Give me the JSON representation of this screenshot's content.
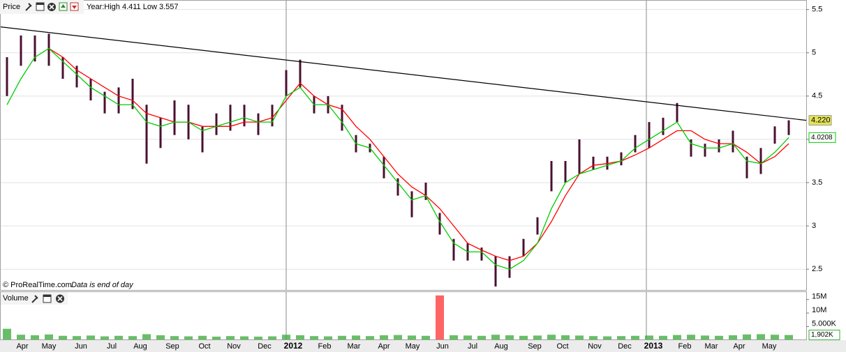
{
  "chart_data": {
    "type": "ohlc",
    "title": "Price",
    "subtitle": "Year:High 4.411 Low 3.557",
    "source": "© ProRealTime.com",
    "note": "Data is end of day",
    "x": [
      0,
      1,
      2,
      3,
      4,
      5,
      6,
      7,
      8,
      9,
      10,
      11,
      12,
      13,
      14,
      15,
      16,
      17,
      18,
      19,
      20,
      21,
      22,
      23,
      24,
      25,
      26,
      27,
      28,
      29,
      30,
      31,
      32,
      33,
      34,
      35,
      36,
      37,
      38,
      39,
      40,
      41,
      42,
      43,
      44,
      45,
      46,
      47,
      48,
      49,
      50,
      51,
      52,
      53,
      54,
      55,
      56
    ],
    "high": [
      4.95,
      5.2,
      5.2,
      5.22,
      4.95,
      4.85,
      4.7,
      4.55,
      4.6,
      4.7,
      4.4,
      4.25,
      4.45,
      4.4,
      4.15,
      4.3,
      4.4,
      4.4,
      4.3,
      4.4,
      4.8,
      4.92,
      4.5,
      4.5,
      4.4,
      4.05,
      3.95,
      3.8,
      3.55,
      3.4,
      3.5,
      3.15,
      2.85,
      2.8,
      2.75,
      2.65,
      2.65,
      2.85,
      3.1,
      3.75,
      3.75,
      4.0,
      3.8,
      3.8,
      3.85,
      4.05,
      4.2,
      4.25,
      4.42,
      4.0,
      3.95,
      4.0,
      4.1,
      3.8,
      3.9,
      4.15,
      4.22
    ],
    "low": [
      4.5,
      4.85,
      4.9,
      4.85,
      4.7,
      4.6,
      4.45,
      4.3,
      4.3,
      4.35,
      3.72,
      3.9,
      4.05,
      4.0,
      3.85,
      4.05,
      4.1,
      4.15,
      4.05,
      4.15,
      4.5,
      4.6,
      4.3,
      4.3,
      4.1,
      3.85,
      3.85,
      3.55,
      3.35,
      3.1,
      3.3,
      2.9,
      2.6,
      2.6,
      2.6,
      2.3,
      2.4,
      2.65,
      2.9,
      3.4,
      3.5,
      3.6,
      3.65,
      3.65,
      3.7,
      3.85,
      3.9,
      4.05,
      4.2,
      3.8,
      3.8,
      3.85,
      3.85,
      3.55,
      3.6,
      3.95,
      4.05
    ],
    "price_color": "#4a1030",
    "last_label": "4.220",
    "last_label_color": "#e2e25a",
    "series": [
      {
        "color": "#ff0000",
        "values": [
          null,
          null,
          null,
          5.05,
          4.95,
          4.8,
          4.7,
          4.6,
          4.5,
          4.45,
          4.3,
          4.25,
          4.2,
          4.2,
          4.15,
          4.15,
          4.15,
          4.2,
          4.2,
          4.25,
          4.45,
          4.65,
          4.5,
          4.4,
          4.35,
          4.15,
          4.0,
          3.8,
          3.6,
          3.45,
          3.35,
          3.2,
          3.0,
          2.8,
          2.72,
          2.65,
          2.6,
          2.65,
          2.8,
          3.05,
          3.35,
          3.6,
          3.7,
          3.72,
          3.75,
          3.82,
          3.9,
          4.0,
          4.1,
          4.1,
          4.0,
          3.95,
          3.95,
          3.85,
          3.72,
          3.8,
          3.95
        ]
      },
      {
        "color": "#00cc00",
        "values": [
          4.4,
          4.7,
          4.95,
          5.05,
          4.9,
          4.75,
          4.6,
          4.5,
          4.4,
          4.4,
          4.2,
          4.15,
          4.2,
          4.2,
          4.1,
          4.15,
          4.2,
          4.25,
          4.2,
          4.2,
          4.5,
          4.6,
          4.4,
          4.4,
          4.2,
          3.95,
          3.9,
          3.7,
          3.5,
          3.3,
          3.35,
          3.05,
          2.8,
          2.7,
          2.7,
          2.55,
          2.5,
          2.6,
          2.8,
          3.2,
          3.5,
          3.6,
          3.65,
          3.7,
          3.75,
          3.9,
          4.0,
          4.1,
          4.2,
          3.95,
          3.9,
          3.9,
          3.95,
          3.75,
          3.72,
          3.85,
          4.0208
        ]
      }
    ],
    "trendline": {
      "color": "#000000",
      "x": [
        -0.5,
        57.25
      ],
      "values": [
        5.3,
        4.22
      ]
    },
    "xlim": [
      -0.5,
      57.25
    ],
    "ylim": [
      2.26,
      5.61
    ],
    "yticks": [
      2.5,
      3,
      3.5,
      4,
      4.5,
      5,
      5.5
    ],
    "grid": true,
    "xticks": [
      {
        "value": 1.1,
        "label": "Apr"
      },
      {
        "value": 3.0,
        "label": "May"
      },
      {
        "value": 5.3,
        "label": "Jun"
      },
      {
        "value": 7.5,
        "label": "Jul"
      },
      {
        "value": 9.55,
        "label": "Aug"
      },
      {
        "value": 11.85,
        "label": "Sep"
      },
      {
        "value": 14.15,
        "label": "Oct"
      },
      {
        "value": 16.25,
        "label": "Nov"
      },
      {
        "value": 18.45,
        "label": "Dec"
      },
      {
        "value": 20.5,
        "label": "2012"
      },
      {
        "value": 22.75,
        "label": "Feb"
      },
      {
        "value": 24.85,
        "label": "Mar"
      },
      {
        "value": 27.0,
        "label": "Apr"
      },
      {
        "value": 29.05,
        "label": "May"
      },
      {
        "value": 31.2,
        "label": "Jun"
      },
      {
        "value": 33.35,
        "label": "Jul"
      },
      {
        "value": 35.4,
        "label": "Aug"
      },
      {
        "value": 37.8,
        "label": "Sep"
      },
      {
        "value": 39.8,
        "label": "Oct"
      },
      {
        "value": 42.1,
        "label": "Nov"
      },
      {
        "value": 44.25,
        "label": "Dec"
      },
      {
        "value": 46.3,
        "label": "2013"
      },
      {
        "value": 48.55,
        "label": "Feb"
      },
      {
        "value": 50.45,
        "label": "Mar"
      },
      {
        "value": 52.45,
        "label": "Apr"
      },
      {
        "value": 54.6,
        "label": "May"
      }
    ],
    "volume": {
      "title": "Volume",
      "color": "#33aa33",
      "values": [
        4.2,
        2.0,
        1.8,
        2.1,
        1.6,
        1.5,
        1.7,
        1.4,
        1.6,
        1.5,
        2.2,
        1.8,
        1.5,
        1.4,
        1.6,
        1.3,
        1.5,
        1.4,
        1.3,
        1.4,
        2.0,
        1.8,
        1.5,
        1.4,
        1.6,
        1.7,
        1.5,
        1.8,
        1.9,
        1.7,
        1.6,
        16.5,
        1.8,
        1.7,
        1.6,
        2.0,
        1.8,
        1.6,
        1.7,
        2.0,
        1.8,
        1.7,
        1.5,
        1.4,
        1.5,
        1.6,
        1.7,
        1.6,
        1.9,
        2.0,
        1.7,
        1.6,
        1.8,
        2.1,
        2.2,
        2.0,
        1.902
      ],
      "spike_color": "#ff3030",
      "ylim": [
        0,
        18
      ],
      "yticks": [
        {
          "value": 15,
          "label": "15M"
        },
        {
          "value": 10,
          "label": "10M"
        },
        {
          "value": 5,
          "label": "5.000K"
        }
      ],
      "last_label": "1,902K"
    }
  }
}
